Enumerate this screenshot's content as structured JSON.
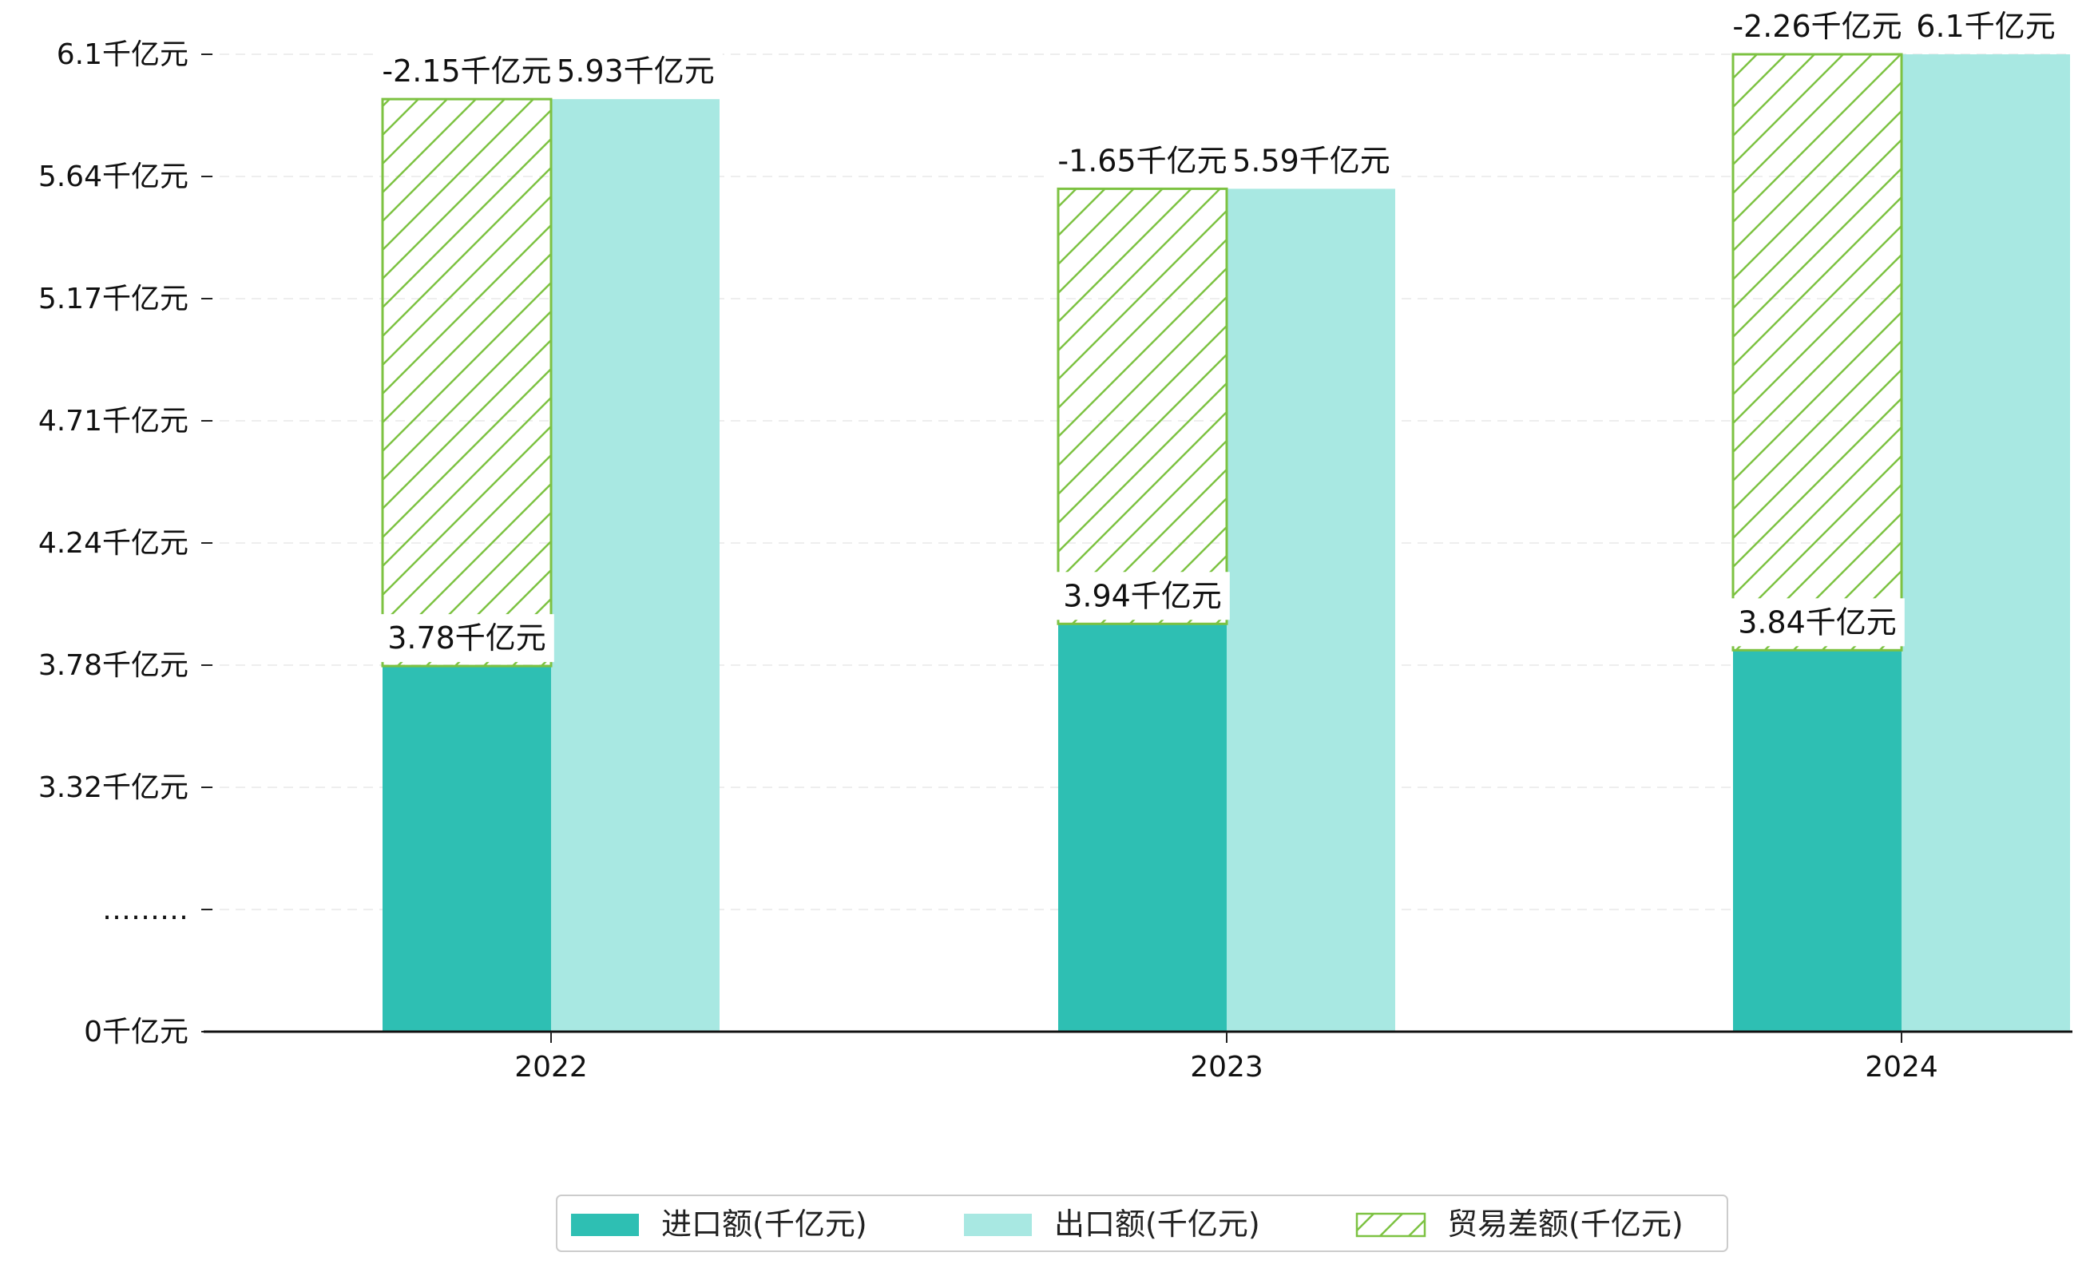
{
  "chart_data": {
    "type": "bar",
    "categories": [
      "2022",
      "2023",
      "2024"
    ],
    "series": [
      {
        "name": "进口额(千亿元)",
        "values": [
          3.78,
          3.94,
          3.84
        ],
        "labels": [
          "3.78千亿元",
          "3.94千亿元",
          "3.84千亿元"
        ],
        "color": "#2ebfb3"
      },
      {
        "name": "出口额(千亿元)",
        "values": [
          5.93,
          5.59,
          6.1
        ],
        "labels": [
          "5.93千亿元",
          "5.59千亿元",
          "6.1千亿元"
        ],
        "color": "#a8e8e2"
      },
      {
        "name": "贸易差额(千亿元)",
        "values": [
          -2.15,
          -1.65,
          -2.26
        ],
        "labels": [
          "-2.15千亿元",
          "-1.65千亿元",
          "-2.26千亿元"
        ],
        "color": "#7dc242",
        "pattern": "hatch"
      }
    ],
    "y_ticks": [
      {
        "label": "0千亿元",
        "value": 0
      },
      {
        "label": "………",
        "value": null
      },
      {
        "label": "3.32千亿元",
        "value": 3.32
      },
      {
        "label": "3.78千亿元",
        "value": 3.78
      },
      {
        "label": "4.24千亿元",
        "value": 4.24
      },
      {
        "label": "4.71千亿元",
        "value": 4.71
      },
      {
        "label": "5.17千亿元",
        "value": 5.17
      },
      {
        "label": "5.64千亿元",
        "value": 5.64
      },
      {
        "label": "6.1千亿元",
        "value": 6.1
      }
    ],
    "y_axis": "broken",
    "grid": "horizontal-dashed",
    "legend_position": "bottom-center",
    "title": "",
    "xlabel": "",
    "ylabel": ""
  }
}
